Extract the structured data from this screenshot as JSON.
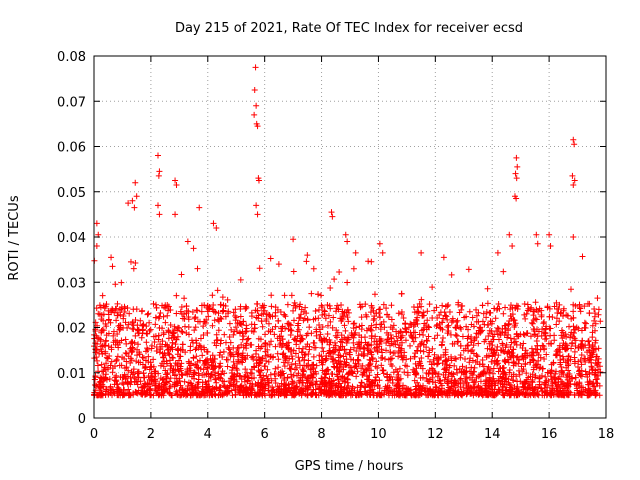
{
  "chart_data": {
    "type": "scatter",
    "title": "Day 215 of 2021, Rate Of TEC Index for receiver ecsd",
    "xlabel": "GPS time / hours",
    "ylabel": "ROTI / TECUs",
    "xlim": [
      0,
      18
    ],
    "ylim": [
      0,
      0.08
    ],
    "x_ticks": [
      0,
      2,
      4,
      6,
      8,
      10,
      12,
      14,
      16,
      18
    ],
    "x_tick_labels": [
      "0",
      "2",
      "4",
      "6",
      "8",
      "10",
      "12",
      "14",
      "16",
      "18"
    ],
    "y_ticks": [
      0,
      0.01,
      0.02,
      0.03,
      0.04,
      0.05,
      0.06,
      0.07,
      0.08
    ],
    "y_tick_labels": [
      "0",
      "0.01",
      "0.02",
      "0.03",
      "0.04",
      "0.05",
      "0.06",
      "0.07",
      "0.08"
    ],
    "grid": true,
    "marker": "+",
    "marker_color": "#ff0000",
    "x_data_range": [
      0,
      17.8
    ],
    "typical_value_range": [
      0.005,
      0.02
    ],
    "outlier_points": [
      {
        "x": 5.68,
        "y": 0.0775
      },
      {
        "x": 5.65,
        "y": 0.0725
      },
      {
        "x": 5.7,
        "y": 0.069
      },
      {
        "x": 5.63,
        "y": 0.067
      },
      {
        "x": 5.72,
        "y": 0.065
      },
      {
        "x": 5.75,
        "y": 0.0645
      },
      {
        "x": 5.78,
        "y": 0.053
      },
      {
        "x": 5.8,
        "y": 0.0525
      },
      {
        "x": 5.7,
        "y": 0.047
      },
      {
        "x": 5.75,
        "y": 0.045
      },
      {
        "x": 2.25,
        "y": 0.058
      },
      {
        "x": 2.3,
        "y": 0.0545
      },
      {
        "x": 2.28,
        "y": 0.0535
      },
      {
        "x": 2.25,
        "y": 0.047
      },
      {
        "x": 2.3,
        "y": 0.045
      },
      {
        "x": 2.85,
        "y": 0.0525
      },
      {
        "x": 2.9,
        "y": 0.0515
      },
      {
        "x": 2.85,
        "y": 0.045
      },
      {
        "x": 1.45,
        "y": 0.052
      },
      {
        "x": 1.5,
        "y": 0.049
      },
      {
        "x": 1.35,
        "y": 0.048
      },
      {
        "x": 1.42,
        "y": 0.0465
      },
      {
        "x": 1.2,
        "y": 0.0475
      },
      {
        "x": 3.7,
        "y": 0.0465
      },
      {
        "x": 4.2,
        "y": 0.043
      },
      {
        "x": 4.3,
        "y": 0.042
      },
      {
        "x": 0.1,
        "y": 0.043
      },
      {
        "x": 0.15,
        "y": 0.0405
      },
      {
        "x": 0.1,
        "y": 0.038
      },
      {
        "x": 14.85,
        "y": 0.0575
      },
      {
        "x": 14.88,
        "y": 0.0555
      },
      {
        "x": 14.82,
        "y": 0.054
      },
      {
        "x": 14.86,
        "y": 0.053
      },
      {
        "x": 14.8,
        "y": 0.049
      },
      {
        "x": 14.84,
        "y": 0.0485
      },
      {
        "x": 16.85,
        "y": 0.0615
      },
      {
        "x": 16.88,
        "y": 0.0605
      },
      {
        "x": 16.82,
        "y": 0.0535
      },
      {
        "x": 16.85,
        "y": 0.0515
      },
      {
        "x": 16.9,
        "y": 0.0525
      },
      {
        "x": 16.85,
        "y": 0.04
      },
      {
        "x": 8.35,
        "y": 0.0455
      },
      {
        "x": 8.38,
        "y": 0.0445
      },
      {
        "x": 8.85,
        "y": 0.0405
      },
      {
        "x": 8.9,
        "y": 0.039
      },
      {
        "x": 9.2,
        "y": 0.0365
      },
      {
        "x": 10.05,
        "y": 0.0385
      },
      {
        "x": 10.15,
        "y": 0.0365
      },
      {
        "x": 11.5,
        "y": 0.0365
      },
      {
        "x": 12.3,
        "y": 0.0355
      },
      {
        "x": 14.2,
        "y": 0.0365
      },
      {
        "x": 14.6,
        "y": 0.0405
      },
      {
        "x": 14.7,
        "y": 0.038
      },
      {
        "x": 15.55,
        "y": 0.0405
      },
      {
        "x": 15.6,
        "y": 0.0385
      },
      {
        "x": 16.0,
        "y": 0.0405
      },
      {
        "x": 16.05,
        "y": 0.038
      },
      {
        "x": 17.7,
        "y": 0.0265
      },
      {
        "x": 17.75,
        "y": 0.024
      },
      {
        "x": 7.0,
        "y": 0.0395
      },
      {
        "x": 7.5,
        "y": 0.036
      },
      {
        "x": 6.5,
        "y": 0.034
      },
      {
        "x": 3.3,
        "y": 0.039
      },
      {
        "x": 3.5,
        "y": 0.0375
      },
      {
        "x": 0.6,
        "y": 0.0355
      },
      {
        "x": 0.65,
        "y": 0.0335
      },
      {
        "x": 1.3,
        "y": 0.0345
      },
      {
        "x": 1.4,
        "y": 0.033
      }
    ]
  }
}
